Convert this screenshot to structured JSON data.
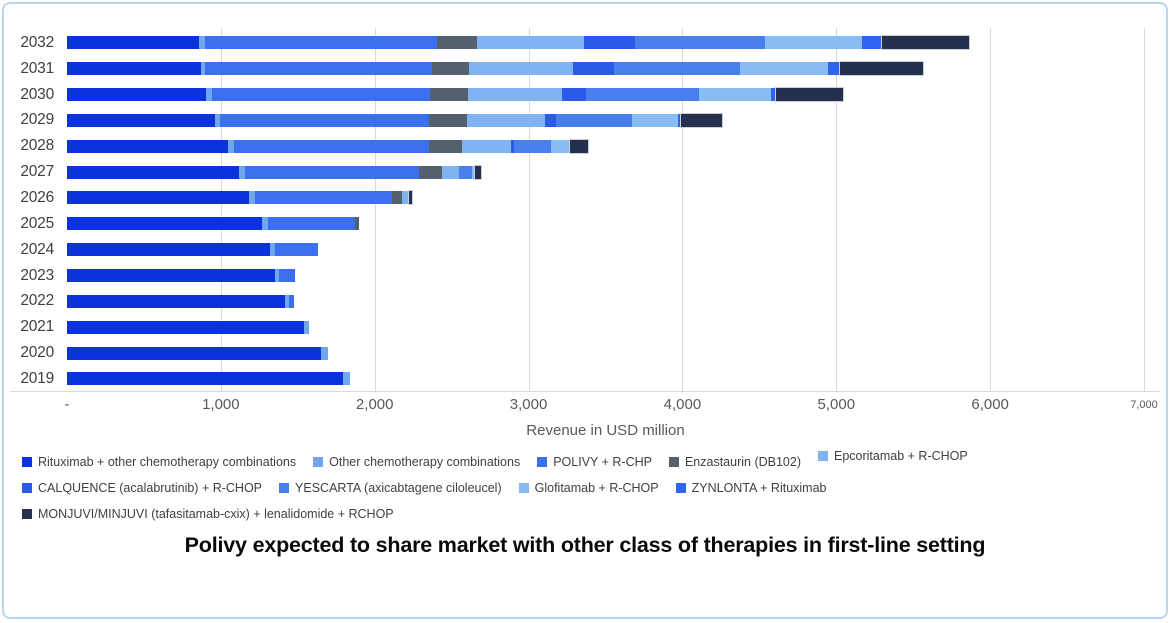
{
  "title": {
    "text": "Polivy expected to share market with other class of therapies in first-line setting"
  },
  "frame": {
    "border_color": "#BDD7EE",
    "background": "#FFFFFF",
    "gridline_color": "#D9D9D9"
  },
  "chart_data": {
    "type": "bar",
    "orientation": "horizontal",
    "stacked": true,
    "grid": "vertical",
    "xlabel": "Revenue in USD million",
    "xlim": [
      0,
      7000
    ],
    "x_ticks": [
      "-",
      "1,000",
      "2,000",
      "3,000",
      "4,000",
      "5,000",
      "6,000",
      "7,000"
    ],
    "categories": [
      "2032",
      "2031",
      "2030",
      "2029",
      "2028",
      "2027",
      "2026",
      "2025",
      "2024",
      "2023",
      "2022",
      "2021",
      "2020",
      "2019"
    ],
    "series": [
      {
        "name": "Rituximab + other chemotherapy combinations",
        "color": "#0B32DC",
        "values": [
          860,
          870,
          905,
          965,
          1045,
          1120,
          1185,
          1270,
          1320,
          1350,
          1415,
          1540,
          1650,
          1795
        ]
      },
      {
        "name": "Other chemotherapy combinations",
        "color": "#6FA6EE",
        "values": [
          35,
          30,
          35,
          30,
          40,
          40,
          40,
          35,
          30,
          30,
          30,
          35,
          45,
          45
        ]
      },
      {
        "name": "POLIVY + R-CHP",
        "color": "#3A6FED",
        "values": [
          1510,
          1470,
          1420,
          1360,
          1270,
          1130,
          890,
          570,
          280,
          105,
          30,
          0,
          0,
          0
        ]
      },
      {
        "name": "Enzastaurin (DB102)",
        "color": "#55606F",
        "values": [
          260,
          245,
          245,
          245,
          210,
          145,
          65,
          25,
          0,
          0,
          0,
          0,
          0,
          0
        ]
      },
      {
        "name": "Epcoritamab + R-CHOP",
        "color": "#7FB3F2",
        "values": [
          695,
          675,
          615,
          510,
          320,
          115,
          45,
          0,
          0,
          0,
          0,
          0,
          0,
          0
        ]
      },
      {
        "name": "CALQUENCE (acalabrutinib) + R-CHOP",
        "color": "#2B5AE8",
        "values": [
          330,
          265,
          155,
          70,
          20,
          0,
          0,
          0,
          0,
          0,
          0,
          0,
          0,
          0
        ]
      },
      {
        "name": "YESCARTA (axicabtagene ciloleucel)",
        "color": "#4780EC",
        "values": [
          850,
          820,
          730,
          490,
          240,
          85,
          0,
          0,
          0,
          0,
          0,
          0,
          0,
          0
        ]
      },
      {
        "name": "Glofitamab + R-CHOP",
        "color": "#8ABCF4",
        "values": [
          630,
          570,
          470,
          300,
          125,
          15,
          0,
          0,
          0,
          0,
          0,
          0,
          0,
          0
        ]
      },
      {
        "name": "ZYNLONTA  + Rituximab",
        "color": "#2E65EE",
        "values": [
          130,
          80,
          35,
          20,
          0,
          0,
          0,
          0,
          0,
          0,
          0,
          0,
          0,
          0
        ]
      },
      {
        "name": "MONJUVI/MINJUVI (tafasitamab-cxix) + lenalidomide + RCHOP",
        "color": "#24304D",
        "outlined": true,
        "values": [
          565,
          540,
          435,
          265,
          120,
          40,
          20,
          0,
          0,
          0,
          0,
          0,
          0,
          0
        ]
      }
    ],
    "legend_rows": [
      [
        0,
        1,
        2,
        3,
        4
      ],
      [
        5,
        6,
        7,
        8
      ],
      [
        9
      ]
    ]
  }
}
